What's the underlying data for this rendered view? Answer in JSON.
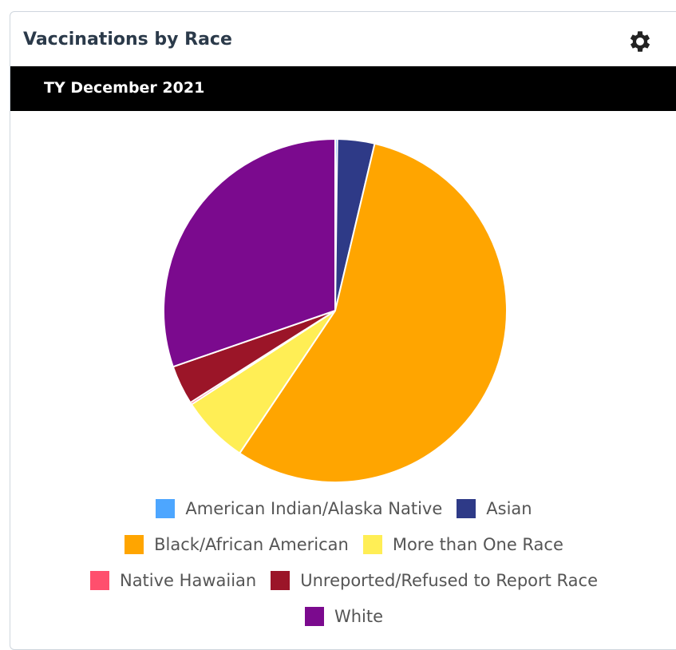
{
  "header": {
    "title": "Vaccinations by Race"
  },
  "chart_data": {
    "type": "pie",
    "subtitle": "TY December 2021",
    "categories": [
      "American Indian/Alaska Native",
      "Asian",
      "Black/African American",
      "More than One Race",
      "Native Hawaiian",
      "Unreported/Refused to Report Race",
      "White"
    ],
    "values": [
      0.2,
      3.5,
      55.7,
      6.4,
      0.2,
      3.7,
      30.3
    ],
    "colors": [
      "#4da6ff",
      "#2e3a87",
      "#ffa500",
      "#ffee55",
      "#ff4f6d",
      "#9b1528",
      "#7b0a8e"
    ]
  }
}
